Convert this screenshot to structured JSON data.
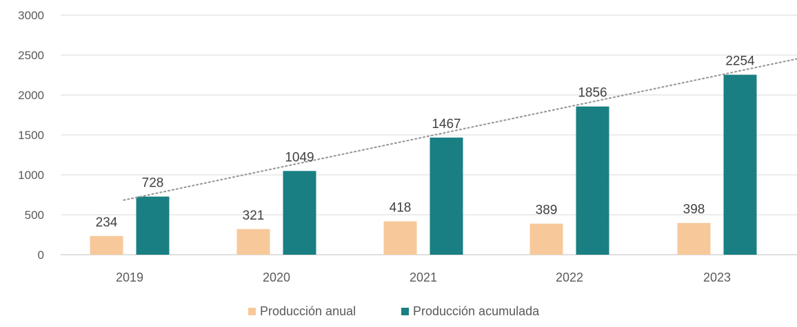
{
  "chart_data": {
    "type": "bar",
    "categories": [
      "2019",
      "2020",
      "2021",
      "2022",
      "2023"
    ],
    "series": [
      {
        "name": "Producción anual",
        "values": [
          234,
          321,
          418,
          389,
          398
        ],
        "color": "#F7C99A"
      },
      {
        "name": "Producción acumulada",
        "values": [
          728,
          1049,
          1467,
          1856,
          2254
        ],
        "color": "#197F82"
      }
    ],
    "y_ticks": [
      "0",
      "500",
      "1000",
      "1500",
      "2000",
      "2500",
      "3000"
    ],
    "ylim": [
      0,
      3000
    ],
    "grid": true,
    "trendline": {
      "series": "Producción acumulada",
      "style": "dotted",
      "color": "#9a9a9a"
    },
    "legend": {
      "position": "bottom"
    },
    "colors": {
      "text": "#595959",
      "grid": "#d9d9d9",
      "axis": "#bfbfbf"
    }
  }
}
